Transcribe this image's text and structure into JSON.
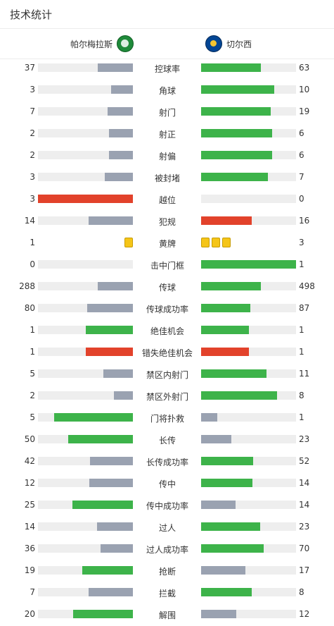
{
  "header": {
    "title": "技术统计"
  },
  "teams": {
    "home": "帕尔梅拉斯",
    "away": "切尔西"
  },
  "colors": {
    "grey": "#9aa2b1",
    "green": "#3db34a",
    "red": "#e2422b",
    "track": "#eeeeee",
    "yellow": "#f5c518"
  },
  "stats": [
    {
      "label": "控球率",
      "home": "37",
      "away": "63",
      "hf": 0.37,
      "af": 0.63,
      "hc": "grey",
      "ac": "green"
    },
    {
      "label": "角球",
      "home": "3",
      "away": "10",
      "hf": 0.23,
      "af": 0.77,
      "hc": "grey",
      "ac": "green"
    },
    {
      "label": "射门",
      "home": "7",
      "away": "19",
      "hf": 0.27,
      "af": 0.73,
      "hc": "grey",
      "ac": "green"
    },
    {
      "label": "射正",
      "home": "2",
      "away": "6",
      "hf": 0.25,
      "af": 0.75,
      "hc": "grey",
      "ac": "green"
    },
    {
      "label": "射偏",
      "home": "2",
      "away": "6",
      "hf": 0.25,
      "af": 0.75,
      "hc": "grey",
      "ac": "green"
    },
    {
      "label": "被封堵",
      "home": "3",
      "away": "7",
      "hf": 0.3,
      "af": 0.7,
      "hc": "grey",
      "ac": "green"
    },
    {
      "label": "越位",
      "home": "3",
      "away": "0",
      "hf": 1.0,
      "af": 0,
      "hc": "red",
      "ac": "grey"
    },
    {
      "label": "犯规",
      "home": "14",
      "away": "16",
      "hf": 0.47,
      "af": 0.53,
      "hc": "grey",
      "ac": "red"
    },
    {
      "label": "黄牌",
      "home": "1",
      "away": "3",
      "cards": true,
      "hcards": 1,
      "acards": 3
    },
    {
      "label": "击中门框",
      "home": "0",
      "away": "1",
      "hf": 0,
      "af": 1.0,
      "hc": "grey",
      "ac": "green"
    },
    {
      "label": "传球",
      "home": "288",
      "away": "498",
      "hf": 0.37,
      "af": 0.63,
      "hc": "grey",
      "ac": "green"
    },
    {
      "label": "传球成功率",
      "home": "80",
      "away": "87",
      "hf": 0.48,
      "af": 0.52,
      "hc": "grey",
      "ac": "green"
    },
    {
      "label": "绝佳机会",
      "home": "1",
      "away": "1",
      "hf": 0.5,
      "af": 0.5,
      "hc": "green",
      "ac": "green"
    },
    {
      "label": "错失绝佳机会",
      "home": "1",
      "away": "1",
      "hf": 0.5,
      "af": 0.5,
      "hc": "red",
      "ac": "red"
    },
    {
      "label": "禁区内射门",
      "home": "5",
      "away": "11",
      "hf": 0.31,
      "af": 0.69,
      "hc": "grey",
      "ac": "green"
    },
    {
      "label": "禁区外射门",
      "home": "2",
      "away": "8",
      "hf": 0.2,
      "af": 0.8,
      "hc": "grey",
      "ac": "green"
    },
    {
      "label": "门将扑救",
      "home": "5",
      "away": "1",
      "hf": 0.83,
      "af": 0.17,
      "hc": "green",
      "ac": "grey"
    },
    {
      "label": "长传",
      "home": "50",
      "away": "23",
      "hf": 0.68,
      "af": 0.32,
      "hc": "green",
      "ac": "grey"
    },
    {
      "label": "长传成功率",
      "home": "42",
      "away": "52",
      "hf": 0.45,
      "af": 0.55,
      "hc": "grey",
      "ac": "green"
    },
    {
      "label": "传中",
      "home": "12",
      "away": "14",
      "hf": 0.46,
      "af": 0.54,
      "hc": "grey",
      "ac": "green"
    },
    {
      "label": "传中成功率",
      "home": "25",
      "away": "14",
      "hf": 0.64,
      "af": 0.36,
      "hc": "green",
      "ac": "grey"
    },
    {
      "label": "过人",
      "home": "14",
      "away": "23",
      "hf": 0.38,
      "af": 0.62,
      "hc": "grey",
      "ac": "green"
    },
    {
      "label": "过人成功率",
      "home": "36",
      "away": "70",
      "hf": 0.34,
      "af": 0.66,
      "hc": "grey",
      "ac": "green"
    },
    {
      "label": "抢断",
      "home": "19",
      "away": "17",
      "hf": 0.53,
      "af": 0.47,
      "hc": "green",
      "ac": "grey"
    },
    {
      "label": "拦截",
      "home": "7",
      "away": "8",
      "hf": 0.47,
      "af": 0.53,
      "hc": "grey",
      "ac": "green"
    },
    {
      "label": "解围",
      "home": "20",
      "away": "12",
      "hf": 0.63,
      "af": 0.37,
      "hc": "green",
      "ac": "grey"
    }
  ]
}
